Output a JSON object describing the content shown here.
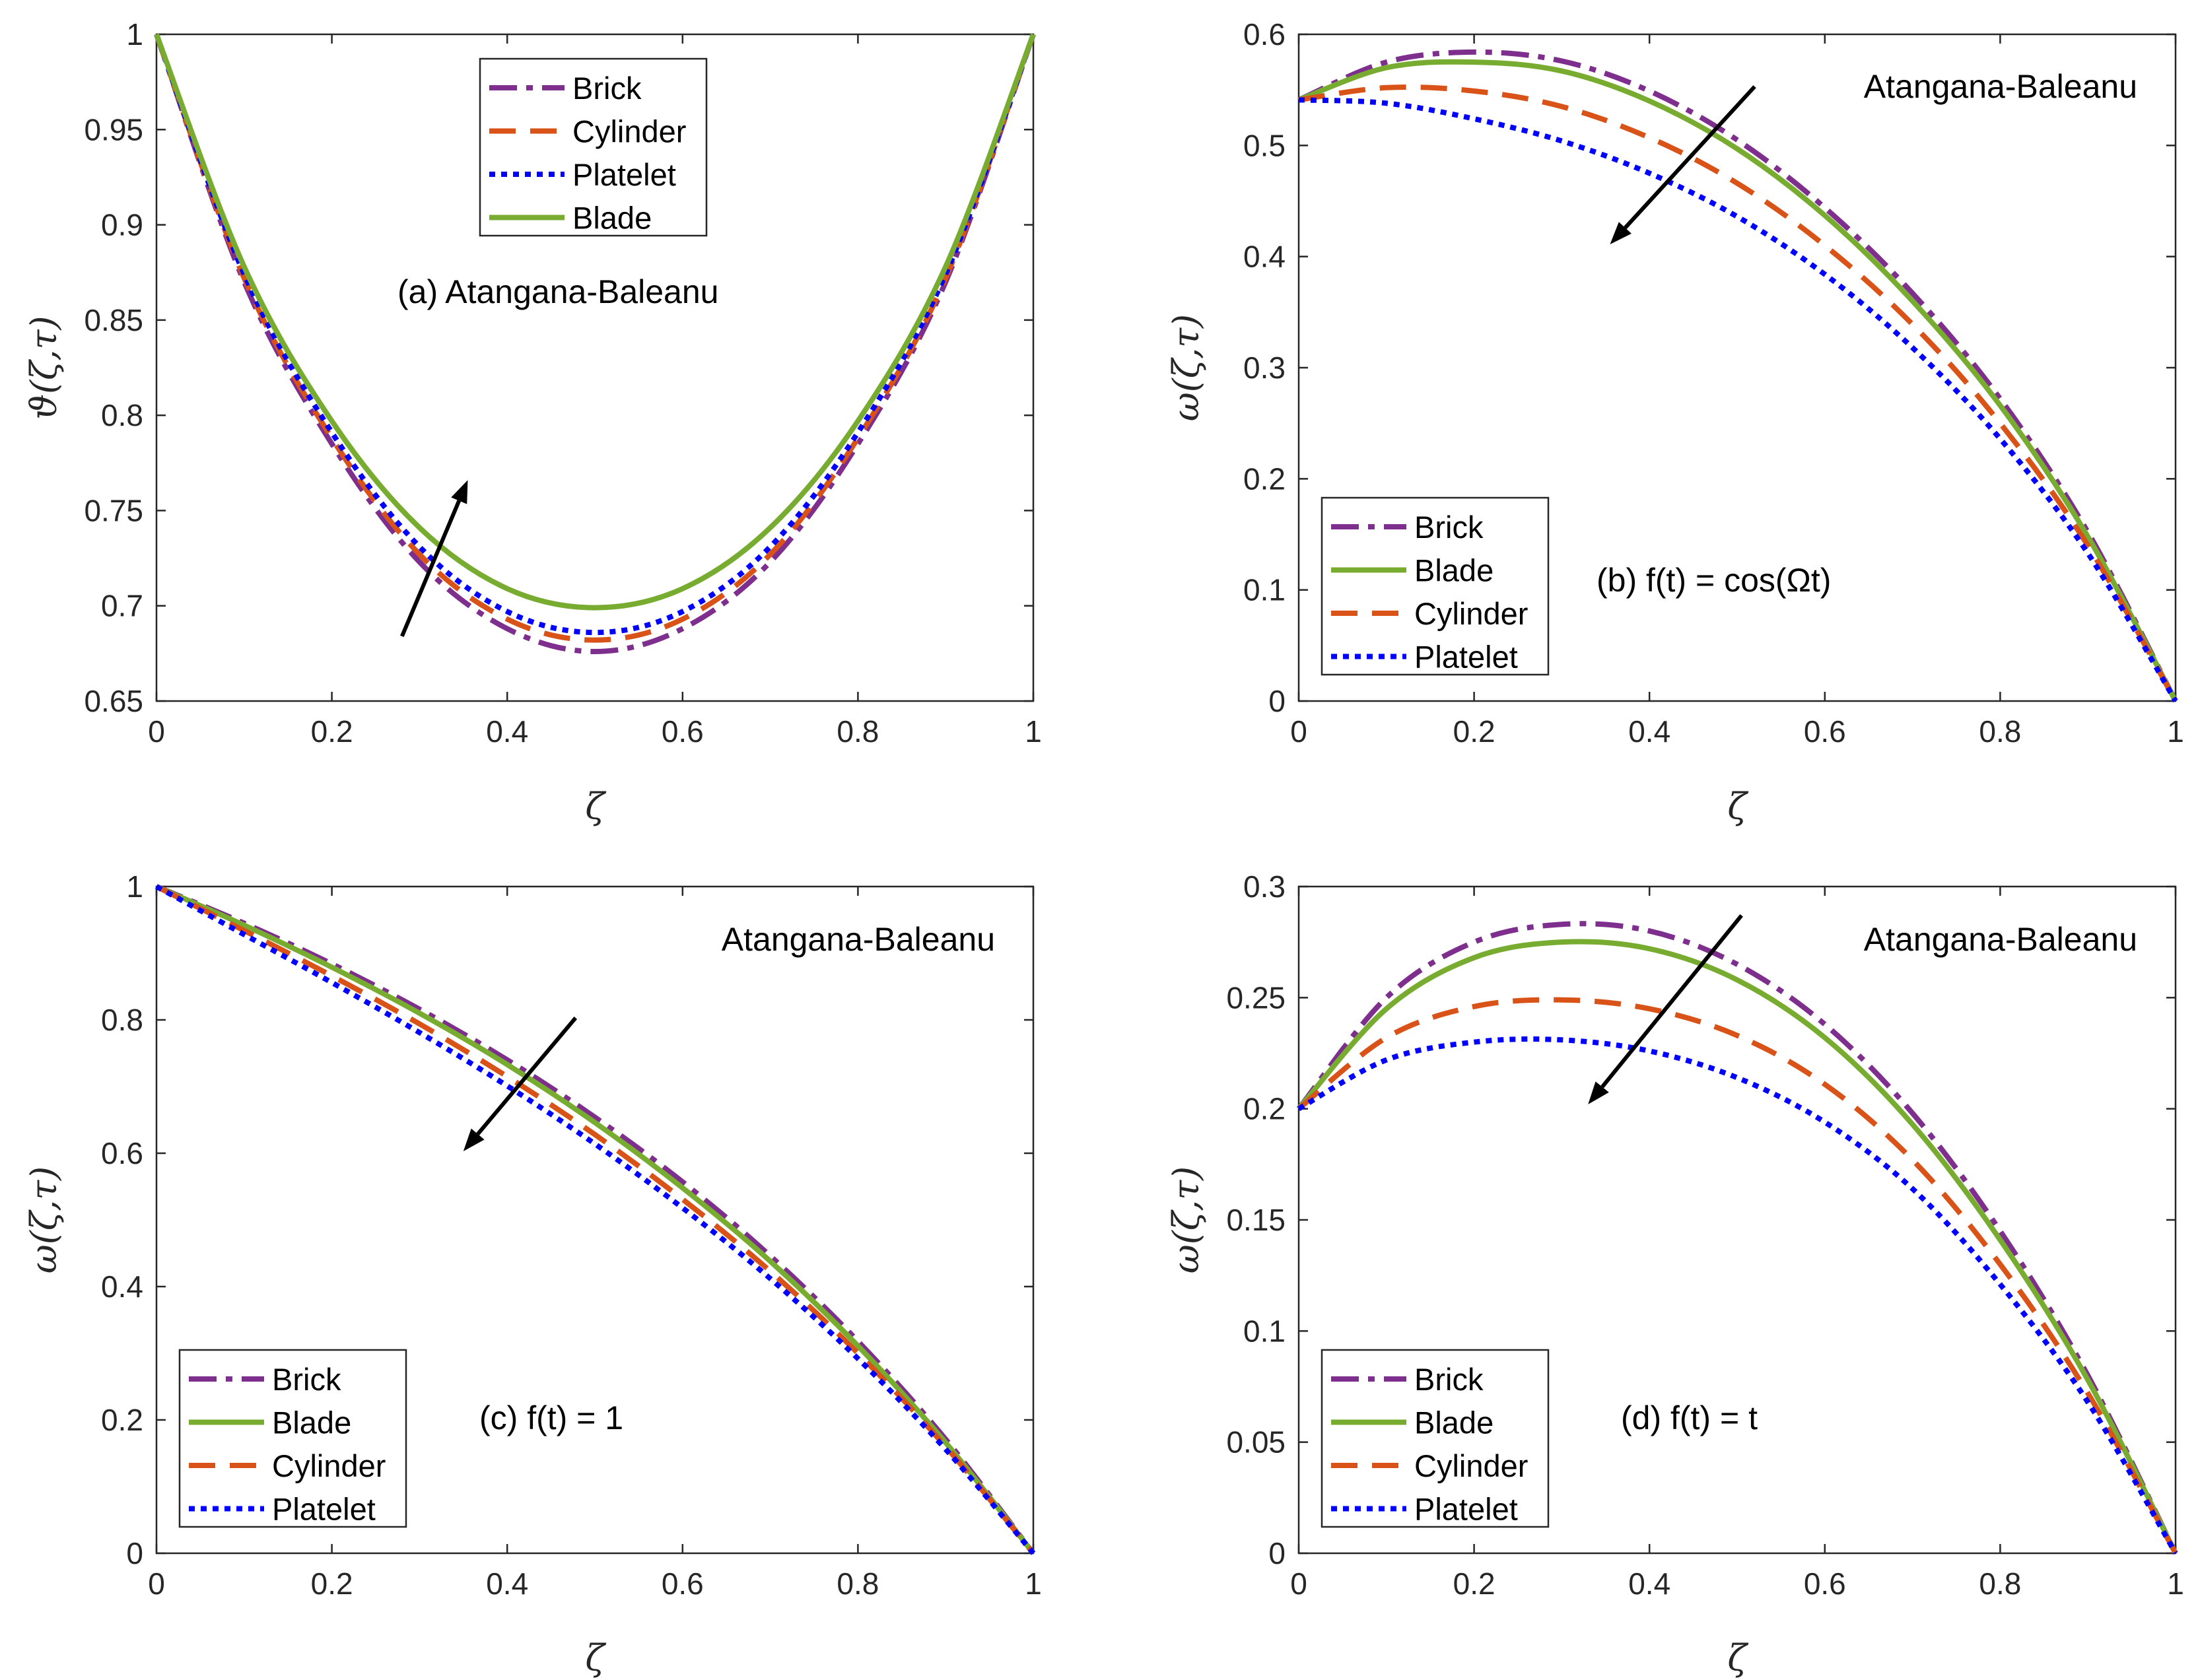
{
  "figure": {
    "series_styles": {
      "Brick": {
        "color": "#7E2F8E",
        "dash": "42 14 10 14"
      },
      "Cylinder": {
        "color": "#D95319",
        "dash": "40 22"
      },
      "Platelet": {
        "color": "#0000FF",
        "dash": "9 9"
      },
      "Blade": {
        "color": "#77AC30",
        "dash": ""
      }
    }
  },
  "chart_data": [
    {
      "id": "a",
      "type": "line",
      "title": "",
      "annotation": "(a) Atangana-Baleanu",
      "xlabel": "ζ",
      "ylabel": "ϑ(ζ,τ)",
      "xlim": [
        0,
        1
      ],
      "ylim": [
        0.65,
        1
      ],
      "xticks": [
        "0",
        "0.2",
        "0.4",
        "0.6",
        "0.8",
        "1"
      ],
      "yticks": [
        "0.65",
        "0.7",
        "0.75",
        "0.8",
        "0.85",
        "0.9",
        "0.95",
        "1"
      ],
      "legend_position": "top-center",
      "legend": [
        "Brick",
        "Cylinder",
        "Platelet",
        "Blade"
      ],
      "arrow": {
        "from": [
          0.28,
          0.684
        ],
        "to": [
          0.355,
          0.766
        ]
      },
      "x": [
        0,
        0.1,
        0.2,
        0.3,
        0.4,
        0.5,
        0.6,
        0.7,
        0.8,
        0.9,
        1
      ],
      "series": [
        {
          "name": "Brick",
          "values": [
            1,
            0.87,
            0.785,
            0.723,
            0.688,
            0.676,
            0.688,
            0.723,
            0.785,
            0.87,
            1
          ]
        },
        {
          "name": "Cylinder",
          "values": [
            1,
            0.872,
            0.788,
            0.727,
            0.693,
            0.682,
            0.693,
            0.727,
            0.788,
            0.872,
            1
          ]
        },
        {
          "name": "Platelet",
          "values": [
            1,
            0.874,
            0.791,
            0.731,
            0.697,
            0.686,
            0.697,
            0.731,
            0.791,
            0.874,
            1
          ]
        },
        {
          "name": "Blade",
          "values": [
            1,
            0.878,
            0.797,
            0.741,
            0.709,
            0.699,
            0.709,
            0.741,
            0.797,
            0.878,
            1
          ]
        }
      ]
    },
    {
      "id": "b",
      "type": "line",
      "title": "Atangana-Baleanu",
      "annotation": "(b) f(t) = cos(Ωt)",
      "xlabel": "ζ",
      "ylabel": "ω(ζ,τ)",
      "xlim": [
        0,
        1
      ],
      "ylim": [
        0,
        0.6
      ],
      "xticks": [
        "0",
        "0.2",
        "0.4",
        "0.6",
        "0.8",
        "1"
      ],
      "yticks": [
        "0",
        "0.1",
        "0.2",
        "0.3",
        "0.4",
        "0.5",
        "0.6"
      ],
      "legend_position": "bottom-left",
      "legend": [
        "Brick",
        "Blade",
        "Cylinder",
        "Platelet"
      ],
      "arrow": {
        "from": [
          0.52,
          0.553
        ],
        "to": [
          0.355,
          0.411
        ]
      },
      "x": [
        0,
        0.1,
        0.2,
        0.3,
        0.4,
        0.5,
        0.6,
        0.7,
        0.8,
        0.9,
        1
      ],
      "series": [
        {
          "name": "Brick",
          "values": [
            0.541,
            0.575,
            0.584,
            0.576,
            0.549,
            0.505,
            0.444,
            0.367,
            0.272,
            0.152,
            0
          ]
        },
        {
          "name": "Blade",
          "values": [
            0.541,
            0.57,
            0.575,
            0.567,
            0.54,
            0.497,
            0.437,
            0.36,
            0.266,
            0.148,
            0
          ]
        },
        {
          "name": "Cylinder",
          "values": [
            0.541,
            0.552,
            0.549,
            0.535,
            0.507,
            0.466,
            0.41,
            0.339,
            0.25,
            0.14,
            0
          ]
        },
        {
          "name": "Platelet",
          "values": [
            0.541,
            0.538,
            0.524,
            0.504,
            0.475,
            0.436,
            0.384,
            0.318,
            0.236,
            0.133,
            0
          ]
        }
      ]
    },
    {
      "id": "c",
      "type": "line",
      "title": "Atangana-Baleanu",
      "annotation": "(c) f(t) = 1",
      "xlabel": "ζ",
      "ylabel": "ω(ζ,τ)",
      "xlim": [
        0,
        1
      ],
      "ylim": [
        0,
        1
      ],
      "xticks": [
        "0",
        "0.2",
        "0.4",
        "0.6",
        "0.8",
        "1"
      ],
      "yticks": [
        "0",
        "0.2",
        "0.4",
        "0.6",
        "0.8",
        "1"
      ],
      "legend_position": "bottom-left",
      "legend": [
        "Brick",
        "Blade",
        "Cylinder",
        "Platelet"
      ],
      "arrow": {
        "from": [
          0.478,
          0.803
        ],
        "to": [
          0.35,
          0.603
        ]
      },
      "x": [
        0,
        0.1,
        0.2,
        0.3,
        0.4,
        0.5,
        0.6,
        0.7,
        0.8,
        0.9,
        1
      ],
      "series": [
        {
          "name": "Brick",
          "values": [
            1,
            0.945,
            0.884,
            0.816,
            0.74,
            0.654,
            0.557,
            0.446,
            0.318,
            0.171,
            0
          ]
        },
        {
          "name": "Blade",
          "values": [
            1,
            0.942,
            0.879,
            0.81,
            0.733,
            0.646,
            0.548,
            0.438,
            0.311,
            0.166,
            0
          ]
        },
        {
          "name": "Cylinder",
          "values": [
            1,
            0.934,
            0.866,
            0.794,
            0.715,
            0.628,
            0.531,
            0.423,
            0.3,
            0.16,
            0
          ]
        },
        {
          "name": "Platelet",
          "values": [
            1,
            0.928,
            0.856,
            0.781,
            0.701,
            0.614,
            0.518,
            0.412,
            0.292,
            0.156,
            0
          ]
        }
      ]
    },
    {
      "id": "d",
      "type": "line",
      "title": "Atangana-Baleanu",
      "annotation": "(d) f(t) = t",
      "xlabel": "ζ",
      "ylabel": "ω(ζ,τ)",
      "xlim": [
        0,
        1
      ],
      "ylim": [
        0,
        0.3
      ],
      "xticks": [
        "0",
        "0.2",
        "0.4",
        "0.6",
        "0.8",
        "1"
      ],
      "yticks": [
        "0",
        "0.05",
        "0.1",
        "0.15",
        "0.2",
        "0.25",
        "0.3"
      ],
      "legend_position": "bottom-left",
      "legend": [
        "Brick",
        "Blade",
        "Cylinder",
        "Platelet"
      ],
      "arrow": {
        "from": [
          0.505,
          0.287
        ],
        "to": [
          0.33,
          0.202
        ]
      },
      "x": [
        0,
        0.1,
        0.2,
        0.3,
        0.4,
        0.5,
        0.6,
        0.7,
        0.8,
        0.9,
        1
      ],
      "series": [
        {
          "name": "Brick",
          "values": [
            0.2,
            0.25,
            0.275,
            0.283,
            0.28,
            0.265,
            0.238,
            0.198,
            0.145,
            0.08,
            0
          ]
        },
        {
          "name": "Blade",
          "values": [
            0.2,
            0.245,
            0.268,
            0.275,
            0.272,
            0.258,
            0.232,
            0.193,
            0.141,
            0.078,
            0
          ]
        },
        {
          "name": "Cylinder",
          "values": [
            0.2,
            0.232,
            0.246,
            0.249,
            0.245,
            0.233,
            0.211,
            0.177,
            0.13,
            0.072,
            0
          ]
        },
        {
          "name": "Platelet",
          "values": [
            0.2,
            0.222,
            0.23,
            0.231,
            0.226,
            0.214,
            0.194,
            0.164,
            0.121,
            0.068,
            0
          ]
        }
      ]
    }
  ]
}
